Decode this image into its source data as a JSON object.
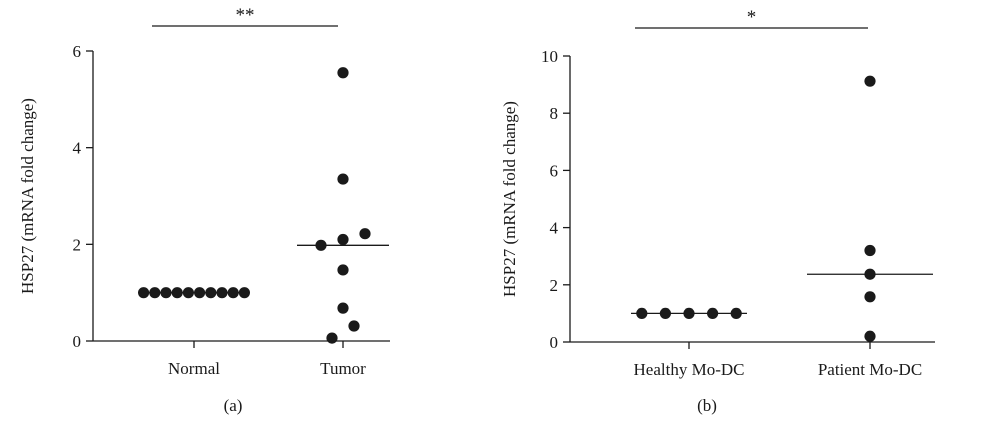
{
  "chart_data": [
    {
      "type": "scatter",
      "panel_label": "(a)",
      "ylabel": "HSP27 (mRNA fold change)",
      "ylim": [
        0,
        6
      ],
      "yticks": [
        0,
        2,
        4,
        6
      ],
      "categories": [
        "Normal",
        "Tumor"
      ],
      "significance": "**",
      "series": [
        {
          "category": "Normal",
          "values": [
            1,
            1,
            1,
            1,
            1,
            1,
            1,
            1,
            1,
            1
          ],
          "median": 1
        },
        {
          "category": "Tumor",
          "values": [
            5.55,
            3.35,
            2.22,
            2.1,
            1.98,
            1.47,
            0.68,
            0.31,
            0.06
          ],
          "median": 1.98
        }
      ]
    },
    {
      "type": "scatter",
      "panel_label": "(b)",
      "ylabel": "HSP27 (mRNA fold change)",
      "ylim": [
        0,
        10
      ],
      "yticks": [
        0,
        2,
        4,
        6,
        8,
        10
      ],
      "categories": [
        "Healthy Mo-DC",
        "Patient Mo-DC"
      ],
      "significance": "*",
      "series": [
        {
          "category": "Healthy Mo-DC",
          "values": [
            1,
            1,
            1,
            1,
            1
          ],
          "median": 1
        },
        {
          "category": "Patient Mo-DC",
          "values": [
            9.12,
            3.2,
            2.37,
            1.58,
            0.2
          ],
          "median": 2.37
        }
      ]
    }
  ]
}
